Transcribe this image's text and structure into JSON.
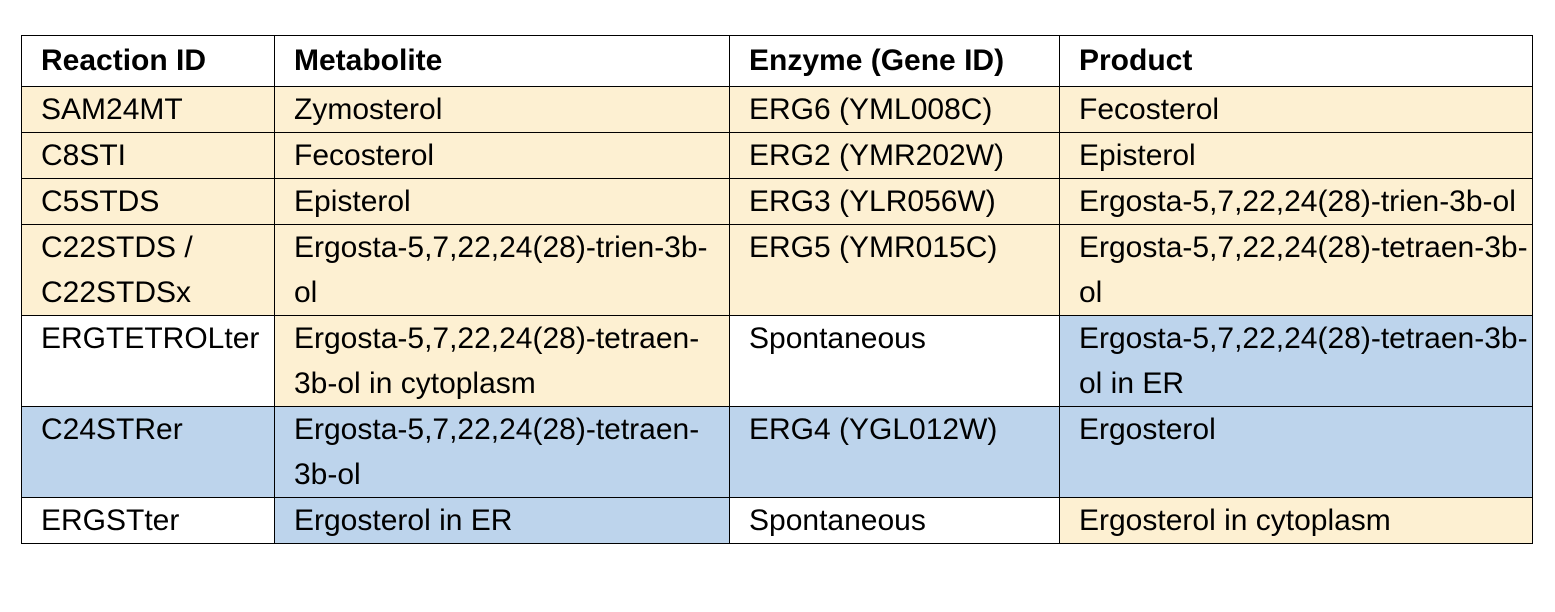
{
  "colors": {
    "header_bg": "#ffffff",
    "yellow_highlight": "#fdf0d2",
    "blue_highlight": "#bdd4ec",
    "border": "#000000"
  },
  "table": {
    "headers": [
      "Reaction ID",
      "Metabolite",
      "Enzyme (Gene ID)",
      "Product"
    ],
    "rows": [
      {
        "cells": [
          "SAM24MT",
          "Zymosterol",
          "ERG6 (YML008C)",
          "Fecosterol"
        ],
        "colors": [
          "yellow",
          "yellow",
          "yellow",
          "yellow"
        ]
      },
      {
        "cells": [
          "C8STI",
          "Fecosterol",
          "ERG2 (YMR202W)",
          "Episterol"
        ],
        "colors": [
          "yellow",
          "yellow",
          "yellow",
          "yellow"
        ]
      },
      {
        "cells": [
          "C5STDS",
          "Episterol",
          "ERG3 (YLR056W)",
          "Ergosta-5,7,22,24(28)-trien-3b-ol"
        ],
        "colors": [
          "yellow",
          "yellow",
          "yellow",
          "yellow"
        ]
      },
      {
        "cells": [
          "C22STDS / C22STDSx",
          "Ergosta-5,7,22,24(28)-trien-3b-ol",
          "ERG5 (YMR015C)",
          "Ergosta-5,7,22,24(28)-tetraen-3b-ol"
        ],
        "colors": [
          "yellow",
          "yellow",
          "yellow",
          "yellow"
        ]
      },
      {
        "cells": [
          "ERGTETROLter",
          "Ergosta-5,7,22,24(28)-tetraen-3b-ol in cytoplasm",
          "Spontaneous",
          "Ergosta-5,7,22,24(28)-tetraen-3b-ol in ER"
        ],
        "colors": [
          "white",
          "yellow",
          "white",
          "blue"
        ]
      },
      {
        "cells": [
          "C24STRer",
          "Ergosta-5,7,22,24(28)-tetraen-3b-ol",
          "ERG4 (YGL012W)",
          "Ergosterol"
        ],
        "colors": [
          "blue",
          "blue",
          "blue",
          "blue"
        ]
      },
      {
        "cells": [
          "ERGSTter",
          "Ergosterol in ER",
          "Spontaneous",
          "Ergosterol in cytoplasm"
        ],
        "colors": [
          "white",
          "blue",
          "white",
          "yellow"
        ]
      }
    ]
  }
}
